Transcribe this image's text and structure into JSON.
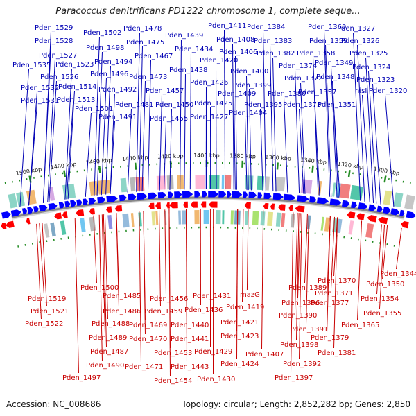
{
  "title": "Paracoccus denitrificans PD1222 chromosome 1, complete seque...",
  "footer": {
    "accession": "Accession: NC_008686",
    "stats": "Topology: circular; Length: 2,852,282 bp; Genes: 2,850"
  },
  "colors": {
    "plus": "#0000ff",
    "minus": "#ff0000",
    "plus_label": "#0000b4",
    "minus_label": "#c80000",
    "backbone": "#888888",
    "tick": "#228b22"
  },
  "scale_ticks": [
    "1500 kbp",
    "1480 kbp",
    "1460 kbp",
    "1440 kbp",
    "1420 kbp",
    "1400 kbp",
    "1380 kbp",
    "1360 kbp",
    "1340 kbp",
    "1320 kbp",
    "1300 kbp"
  ],
  "plus_strand_labels": [
    {
      "text": "Pden_1529"
    },
    {
      "text": "Pden_1528"
    },
    {
      "text": "Pden_1527"
    },
    {
      "text": "Pden_1535"
    },
    {
      "text": "Pden_1523"
    },
    {
      "text": "Pden_1526"
    },
    {
      "text": "Pden_1532"
    },
    {
      "text": "Pden_1514"
    },
    {
      "text": "Pden_1531"
    },
    {
      "text": "Pden_1513"
    },
    {
      "text": "Pden_1502"
    },
    {
      "text": "Pden_1498"
    },
    {
      "text": "Pden_1494"
    },
    {
      "text": "Pden_1496"
    },
    {
      "text": "Pden_1492"
    },
    {
      "text": "Pden_1501"
    },
    {
      "text": "Pden_1491"
    },
    {
      "text": "Pden_1478"
    },
    {
      "text": "Pden_1475"
    },
    {
      "text": "Pden_1467"
    },
    {
      "text": "Pden_1473"
    },
    {
      "text": "Pden_1481"
    },
    {
      "text": "Pden_1457"
    },
    {
      "text": "Pden_1450"
    },
    {
      "text": "Pden_1455"
    },
    {
      "text": "Pden_1439"
    },
    {
      "text": "Pden_1434"
    },
    {
      "text": "Pden_1438"
    },
    {
      "text": "Pden_1426"
    },
    {
      "text": "Pden_1425"
    },
    {
      "text": "Pden_1427"
    },
    {
      "text": "Pden_1411"
    },
    {
      "text": "Pden_1408"
    },
    {
      "text": "Pden_1406"
    },
    {
      "text": "Pden_1420"
    },
    {
      "text": "Pden_1400"
    },
    {
      "text": "Pden_1399"
    },
    {
      "text": "Pden_1409"
    },
    {
      "text": "Pden_1404"
    },
    {
      "text": "Pden_1384"
    },
    {
      "text": "Pden_1383"
    },
    {
      "text": "Pden_1382"
    },
    {
      "text": "Pden_1374"
    },
    {
      "text": "Pden_1372"
    },
    {
      "text": "Pden_1380"
    },
    {
      "text": "Pden_1395"
    },
    {
      "text": "Pden_1373"
    },
    {
      "text": "Pden_1360"
    },
    {
      "text": "Pden_1359"
    },
    {
      "text": "Pden_1358"
    },
    {
      "text": "Pden_1349"
    },
    {
      "text": "Pden_1348"
    },
    {
      "text": "Pden_1357"
    },
    {
      "text": "Pden_1351"
    },
    {
      "text": "Pden_1327"
    },
    {
      "text": "Pden_1326"
    },
    {
      "text": "Pden_1325"
    },
    {
      "text": "Pden_1324"
    },
    {
      "text": "Pden_1323"
    },
    {
      "text": "hisI"
    },
    {
      "text": "Pden_1320"
    }
  ],
  "minus_strand_labels": [
    {
      "text": "Pden_1500"
    },
    {
      "text": "Pden_1519"
    },
    {
      "text": "Pden_1521"
    },
    {
      "text": "Pden_1522"
    },
    {
      "text": "Pden_1485"
    },
    {
      "text": "Pden_1486"
    },
    {
      "text": "Pden_1488"
    },
    {
      "text": "Pden_1489"
    },
    {
      "text": "Pden_1487"
    },
    {
      "text": "Pden_1490"
    },
    {
      "text": "Pden_1497"
    },
    {
      "text": "Pden_1456"
    },
    {
      "text": "Pden_1459"
    },
    {
      "text": "Pden_1469"
    },
    {
      "text": "Pden_1470"
    },
    {
      "text": "Pden_1471"
    },
    {
      "text": "Pden_1453"
    },
    {
      "text": "Pden_1454"
    },
    {
      "text": "Pden_1440"
    },
    {
      "text": "Pden_1441"
    },
    {
      "text": "Pden_1443"
    },
    {
      "text": "Pden_1431"
    },
    {
      "text": "Pden_1436"
    },
    {
      "text": "Pden_1429"
    },
    {
      "text": "Pden_1430"
    },
    {
      "text": "mazG"
    },
    {
      "text": "Pden_1419"
    },
    {
      "text": "Pden_1421"
    },
    {
      "text": "Pden_1423"
    },
    {
      "text": "Pden_1424"
    },
    {
      "text": "Pden_1407"
    },
    {
      "text": "Pden_1389"
    },
    {
      "text": "Pden_1396"
    },
    {
      "text": "Pden_1390"
    },
    {
      "text": "Pden_1391"
    },
    {
      "text": "Pden_1398"
    },
    {
      "text": "Pden_1392"
    },
    {
      "text": "Pden_1397"
    },
    {
      "text": "Pden_1370"
    },
    {
      "text": "Pden_1371"
    },
    {
      "text": "Pden_1377"
    },
    {
      "text": "Pden_1379"
    },
    {
      "text": "Pden_1381"
    },
    {
      "text": "Pden_1365"
    },
    {
      "text": "Pden_1344"
    },
    {
      "text": "Pden_1350"
    },
    {
      "text": "Pden_1354"
    },
    {
      "text": "Pden_1355"
    }
  ]
}
